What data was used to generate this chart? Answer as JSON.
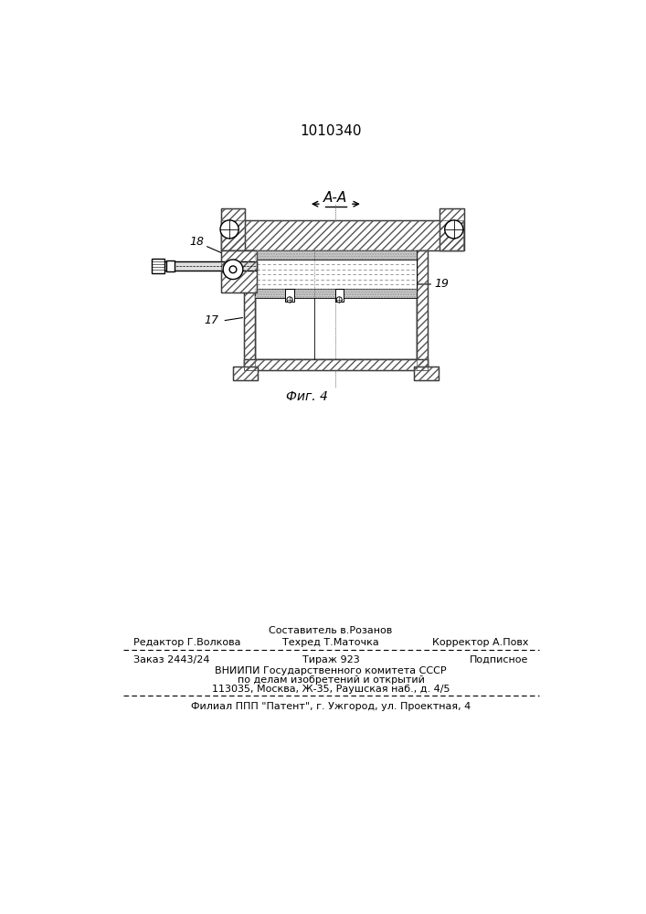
{
  "title": "1010340",
  "fig_label": "Фиг. 4",
  "section_label": "А-А",
  "label_17": "17",
  "label_18": "18",
  "label_19": "19",
  "footer_line0_center": "Составитель в.Розанов",
  "footer_line1_left": "Редактор Г.Волкова",
  "footer_line1_center": "Техред Т.Маточка",
  "footer_line1_right": "Корректор А.Повх",
  "footer_line2_left": "Заказ 2443/24",
  "footer_line2_center": "Тираж 923",
  "footer_line2_right": "Подписное",
  "footer_line3": "ВНИИПИ Государственного комитета СССР",
  "footer_line4": "по делам изобретений и открытий",
  "footer_line5": "113035, Москва, Ж-35, Раушская наб., д. 4/5",
  "footer_line6": "Филиал ППП \"Патент\", г. Ужгород, ул. Проектная, 4",
  "bg_color": "#ffffff",
  "dc": "#000000",
  "lw": 1.0,
  "hatch_lw": 0.5
}
